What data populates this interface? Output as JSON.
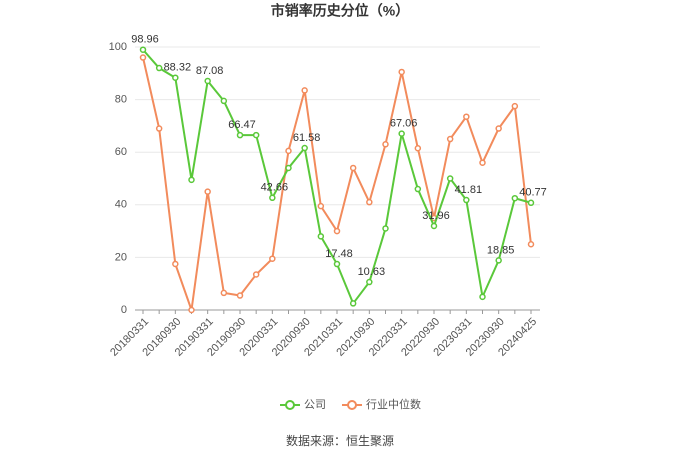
{
  "chart_data": {
    "type": "line",
    "title": "市销率历史分位（%）",
    "categories": [
      "20180331",
      null,
      "20180930",
      null,
      "20190331",
      null,
      "20190930",
      null,
      "20200331",
      null,
      "20200930",
      null,
      "20210331",
      null,
      "20210930",
      null,
      "20220331",
      null,
      "20220930",
      null,
      "20230331",
      null,
      "20230930",
      null,
      "20240425"
    ],
    "series": [
      {
        "name": "公司",
        "color": "#5ac83a",
        "values": [
          98.96,
          92,
          88.32,
          49.5,
          87.08,
          79.5,
          66.47,
          66.5,
          42.66,
          54,
          61.58,
          28,
          17.48,
          2.5,
          10.63,
          31,
          67.06,
          46,
          31.96,
          50,
          41.81,
          5,
          18.85,
          42.5,
          40.77
        ],
        "value_labels": [
          "98.96",
          null,
          "88.32",
          null,
          "87.08",
          null,
          "66.47",
          null,
          "42.66",
          null,
          "61.58",
          null,
          "17.48",
          null,
          "10.63",
          null,
          "67.06",
          null,
          "31.96",
          null,
          "41.81",
          null,
          "18.85",
          null,
          "40.77"
        ]
      },
      {
        "name": "行业中位数",
        "color": "#f28b5c",
        "values": [
          96,
          69,
          17.5,
          0,
          45,
          6.5,
          5.5,
          13.5,
          19.5,
          60.5,
          83.5,
          39.5,
          30,
          54,
          41,
          63,
          90.5,
          61.5,
          35,
          65,
          73.5,
          56,
          69,
          77.5,
          25
        ]
      }
    ],
    "ylim": [
      0,
      100
    ],
    "yticks": [
      0,
      20,
      40,
      60,
      80,
      100
    ],
    "grid": true,
    "source": "数据来源：恒生聚源"
  }
}
